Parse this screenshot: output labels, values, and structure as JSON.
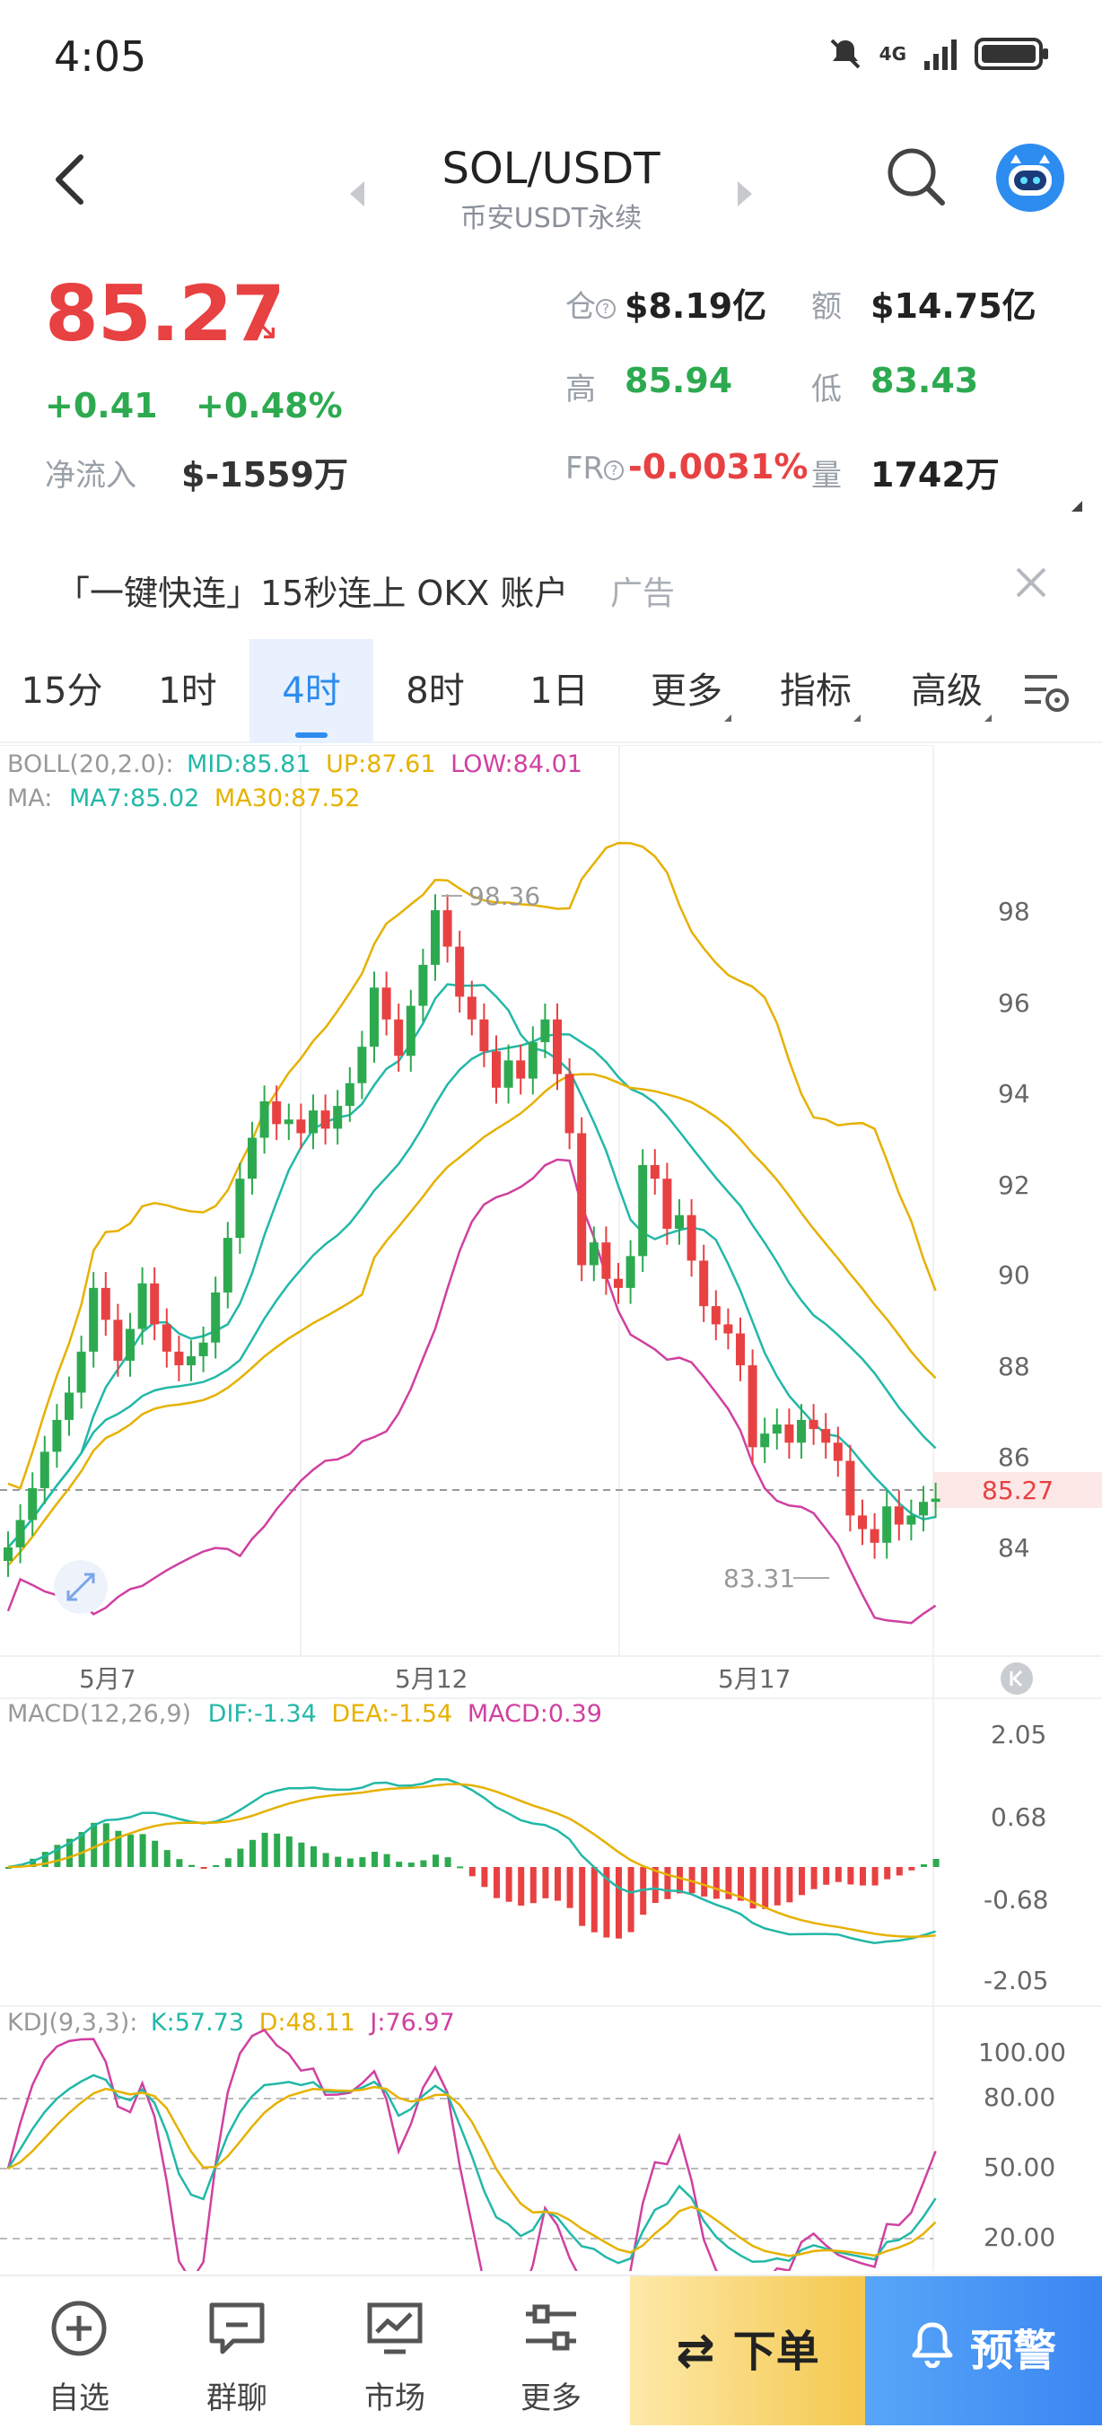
{
  "status": {
    "time": "4:05",
    "net_label": "4G"
  },
  "header": {
    "pair": "SOL/USDT",
    "exchange": "币安USDT永续"
  },
  "price": {
    "last": "85.27",
    "change": "+0.41",
    "change_pct": "+0.48%",
    "net_inflow_label": "净流入",
    "net_inflow": "$-1559万",
    "stats": {
      "oi_label": "仓",
      "oi": "$8.19亿",
      "amount_label": "额",
      "amount": "$14.75亿",
      "high_label": "高",
      "high": "85.94",
      "low_label": "低",
      "low": "83.43",
      "fr_label": "FR",
      "fr": "-0.0031%",
      "vol_label": "量",
      "vol": "1742万"
    }
  },
  "ad": {
    "text": "「一键快连」15秒连上 OKX 账户",
    "tag": "广告"
  },
  "tabs": [
    {
      "label": "15分"
    },
    {
      "label": "1时"
    },
    {
      "label": "4时",
      "active": true
    },
    {
      "label": "8时"
    },
    {
      "label": "1日"
    },
    {
      "label": "更多"
    },
    {
      "label": "指标"
    },
    {
      "label": "高级"
    }
  ],
  "colors": {
    "up": "#2daa50",
    "down": "#e84142",
    "accent": "#2d8cf0",
    "boll_mid": "#22b8a8",
    "boll_up": "#e6b100",
    "boll_low": "#d040a0",
    "ma7": "#22b8a8",
    "ma30": "#e6b100"
  },
  "main_chart": {
    "boll_legend": {
      "prefix": "BOLL(20,2.0):",
      "mid": "MID:85.81",
      "up": "UP:87.61",
      "low": "LOW:84.01"
    },
    "ma_legend": {
      "prefix": "MA:",
      "ma7": "MA7:85.02",
      "ma30": "MA30:87.52"
    },
    "price_axis": [
      "98",
      "96",
      "94",
      "92",
      "90",
      "88",
      "86",
      "84"
    ],
    "current_price_tag": "85.27",
    "high_marker": "98.36",
    "low_marker": "83.31",
    "date_labels": [
      "5月7",
      "5月12",
      "5月17"
    ]
  },
  "macd": {
    "prefix": "MACD(12,26,9)",
    "dif": "DIF:-1.34",
    "dea": "DEA:-1.54",
    "macd": "MACD:0.39",
    "axis": [
      "2.05",
      "0.68",
      "-0.68",
      "-2.05"
    ]
  },
  "kdj": {
    "prefix": "KDJ(9,3,3):",
    "k": "K:57.73",
    "d": "D:48.11",
    "j": "J:76.97",
    "axis": [
      "100.00",
      "80.00",
      "50.00",
      "20.00"
    ]
  },
  "chart_data": {
    "type": "candlestick",
    "x": [
      "5月7",
      "5月12",
      "5月17"
    ],
    "ylim": [
      82.5,
      99.5
    ],
    "current_price": 85.27,
    "period_high": 98.36,
    "period_low": 83.31,
    "boll": {
      "mid": 85.81,
      "up": 87.61,
      "low": 84.01
    },
    "ma": {
      "ma7": 85.02,
      "ma30": 87.52
    },
    "macd": {
      "dif": -1.34,
      "dea": -1.54,
      "macd": 0.39,
      "ylim": [
        -2.05,
        2.05
      ]
    },
    "kdj": {
      "k": 57.73,
      "d": 48.11,
      "j": 76.97,
      "ylim": [
        0,
        100
      ]
    }
  },
  "nav": {
    "watchlist": "自选",
    "chat": "群聊",
    "market": "市场",
    "more": "更多",
    "order": "下单",
    "alert": "预警"
  }
}
